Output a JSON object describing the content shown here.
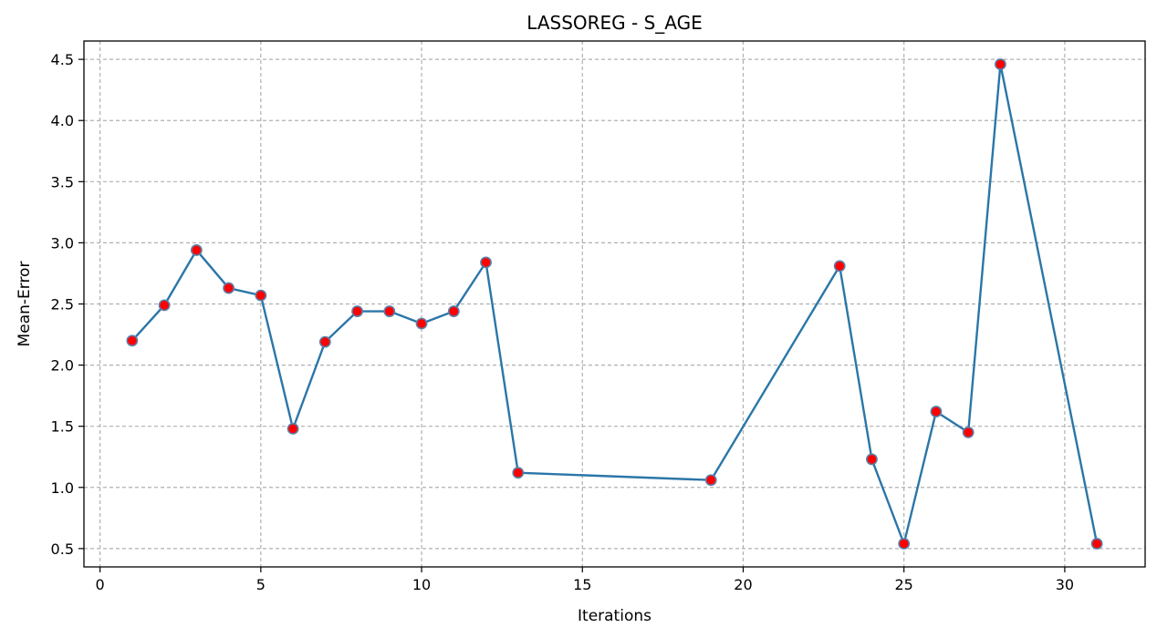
{
  "chart_data": {
    "type": "line",
    "title": "LASSOREG - S_AGE",
    "xlabel": "Iterations",
    "ylabel": "Mean-Error",
    "xlim": [
      -0.5,
      32.5
    ],
    "ylim": [
      0.35,
      4.65
    ],
    "xticks": [
      0,
      5,
      10,
      15,
      20,
      25,
      30
    ],
    "yticks": [
      0.5,
      1.0,
      1.5,
      2.0,
      2.5,
      3.0,
      3.5,
      4.0,
      4.5
    ],
    "ytick_labels": [
      "0.5",
      "1.0",
      "1.5",
      "2.0",
      "2.5",
      "3.0",
      "3.5",
      "4.0",
      "4.5"
    ],
    "grid": true,
    "series": [
      {
        "x": [
          1,
          2,
          3,
          4,
          5,
          6,
          7,
          8,
          9,
          10,
          11,
          12,
          13,
          19,
          23,
          24,
          25,
          26,
          27,
          28,
          31
        ],
        "y": [
          2.2,
          2.49,
          2.94,
          2.63,
          2.57,
          1.48,
          2.19,
          2.44,
          2.44,
          2.34,
          2.44,
          2.84,
          1.12,
          1.06,
          2.81,
          1.23,
          0.54,
          1.62,
          1.45,
          4.46,
          0.54
        ],
        "line_color": "#2b76a8",
        "marker_color": "#ff0000",
        "marker_edge_color": "#5b7fa8"
      }
    ]
  }
}
